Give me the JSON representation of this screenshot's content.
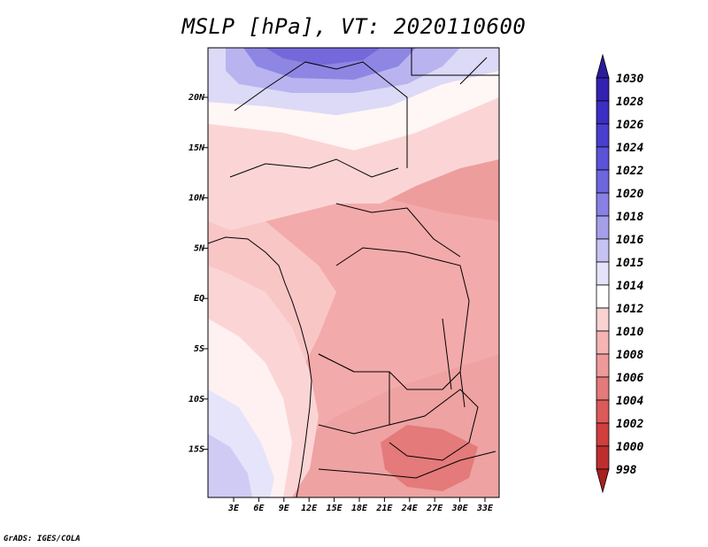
{
  "title": "MSLP [hPa], VT: 2020110600",
  "credit": "GrADS: IGES/COLA",
  "map": {
    "lat_ticks": [
      "20N",
      "15N",
      "10N",
      "5N",
      "EQ",
      "5S",
      "10S",
      "15S"
    ],
    "lon_ticks": [
      "3E",
      "6E",
      "9E",
      "12E",
      "15E",
      "18E",
      "21E",
      "24E",
      "27E",
      "30E",
      "33E"
    ]
  },
  "colorbar": {
    "levels": [
      "1030",
      "1028",
      "1026",
      "1024",
      "1022",
      "1020",
      "1018",
      "1016",
      "1015",
      "1014",
      "1012",
      "1010",
      "1008",
      "1006",
      "1004",
      "1002",
      "1000",
      "998"
    ],
    "colors": [
      "#2a1b9c",
      "#3322b2",
      "#3c2ec4",
      "#4a3ecf",
      "#5c52d8",
      "#6e66dd",
      "#8880e3",
      "#a59fe9",
      "#c6c2f2",
      "#e5e3f9",
      "#ffffff",
      "#fbd2d2",
      "#f6b4b4",
      "#ee9a9a",
      "#e47a7a",
      "#dc5a5a",
      "#d03e3e",
      "#bf2e2e",
      "#a82020"
    ]
  }
}
